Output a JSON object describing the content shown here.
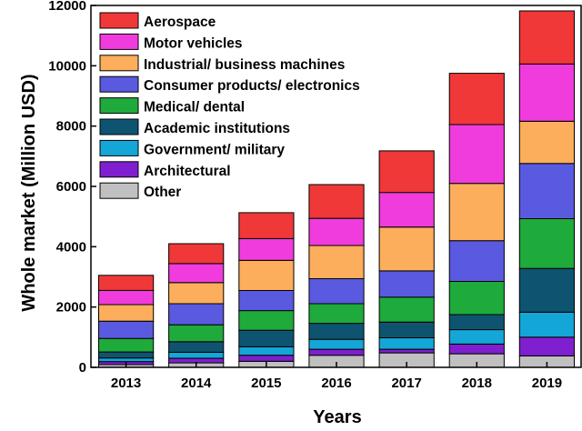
{
  "chart_data": {
    "type": "bar",
    "stacked": true,
    "title": "",
    "xlabel": "Years",
    "ylabel": "Whole market (Million USD)",
    "ylim": [
      0,
      12000
    ],
    "yticks": [
      0,
      2000,
      4000,
      6000,
      8000,
      10000,
      12000
    ],
    "categories": [
      "2013",
      "2014",
      "2015",
      "2016",
      "2017",
      "2018",
      "2019"
    ],
    "legend_position": "top-left",
    "grid": false,
    "series": [
      {
        "name": "Other",
        "color": "#c0c0c0",
        "values": [
          90,
          150,
          200,
          400,
          480,
          450,
          380
        ]
      },
      {
        "name": "Architectural",
        "color": "#7f1fcf",
        "values": [
          100,
          150,
          200,
          200,
          120,
          320,
          620
        ]
      },
      {
        "name": "Government/ military",
        "color": "#14a6d6",
        "values": [
          120,
          200,
          280,
          330,
          380,
          480,
          830
        ]
      },
      {
        "name": "Academic  institutions",
        "color": "#0e5470",
        "values": [
          200,
          350,
          550,
          530,
          520,
          500,
          1450
        ]
      },
      {
        "name": "Medical/ dental",
        "color": "#1faa3c",
        "values": [
          450,
          560,
          650,
          650,
          830,
          1100,
          1650
        ]
      },
      {
        "name": "Consumer products/ electronics",
        "color": "#5a5ae0",
        "values": [
          570,
          700,
          670,
          830,
          870,
          1350,
          1830
        ]
      },
      {
        "name": "Industrial/ business machines",
        "color": "#fcae5c",
        "values": [
          550,
          700,
          1000,
          1100,
          1450,
          1900,
          1400
        ]
      },
      {
        "name": "Motor vehicles",
        "color": "#f03cdc",
        "values": [
          470,
          630,
          720,
          900,
          1150,
          1950,
          1900
        ]
      },
      {
        "name": "Aerospace",
        "color": "#f03838",
        "values": [
          500,
          660,
          860,
          1120,
          1380,
          1700,
          1760
        ]
      }
    ]
  }
}
